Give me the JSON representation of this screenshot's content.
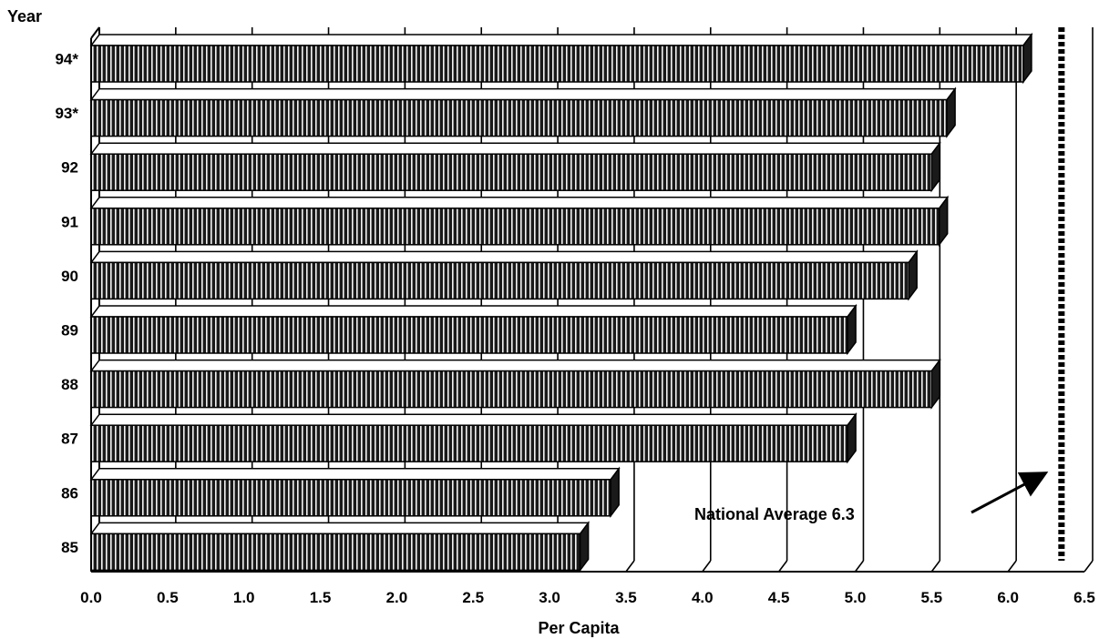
{
  "chart_data": {
    "type": "bar",
    "orientation": "horizontal",
    "title": "",
    "ylabel": "Year",
    "xlabel": "Per Capita",
    "categories": [
      "94*",
      "93*",
      "92",
      "91",
      "90",
      "89",
      "88",
      "87",
      "86",
      "85"
    ],
    "values": [
      6.1,
      5.6,
      5.5,
      5.55,
      5.35,
      4.95,
      5.5,
      4.95,
      3.4,
      3.2
    ],
    "xlim": [
      0.0,
      6.5
    ],
    "xticks": [
      "0.0",
      "0.5",
      "1.0",
      "1.5",
      "2.0",
      "2.5",
      "3.0",
      "3.5",
      "4.0",
      "4.5",
      "5.0",
      "5.5",
      "6.0",
      "6.5"
    ],
    "grid": true,
    "reference_line": {
      "value": 6.35,
      "style": "dashed"
    },
    "annotation": {
      "text": "National Average 6.3"
    },
    "colors": {
      "bar": "#1a1a1a",
      "bar_stripe": "#f2f2f2",
      "bar_top": "#ffffff",
      "grid": "#000000"
    }
  }
}
